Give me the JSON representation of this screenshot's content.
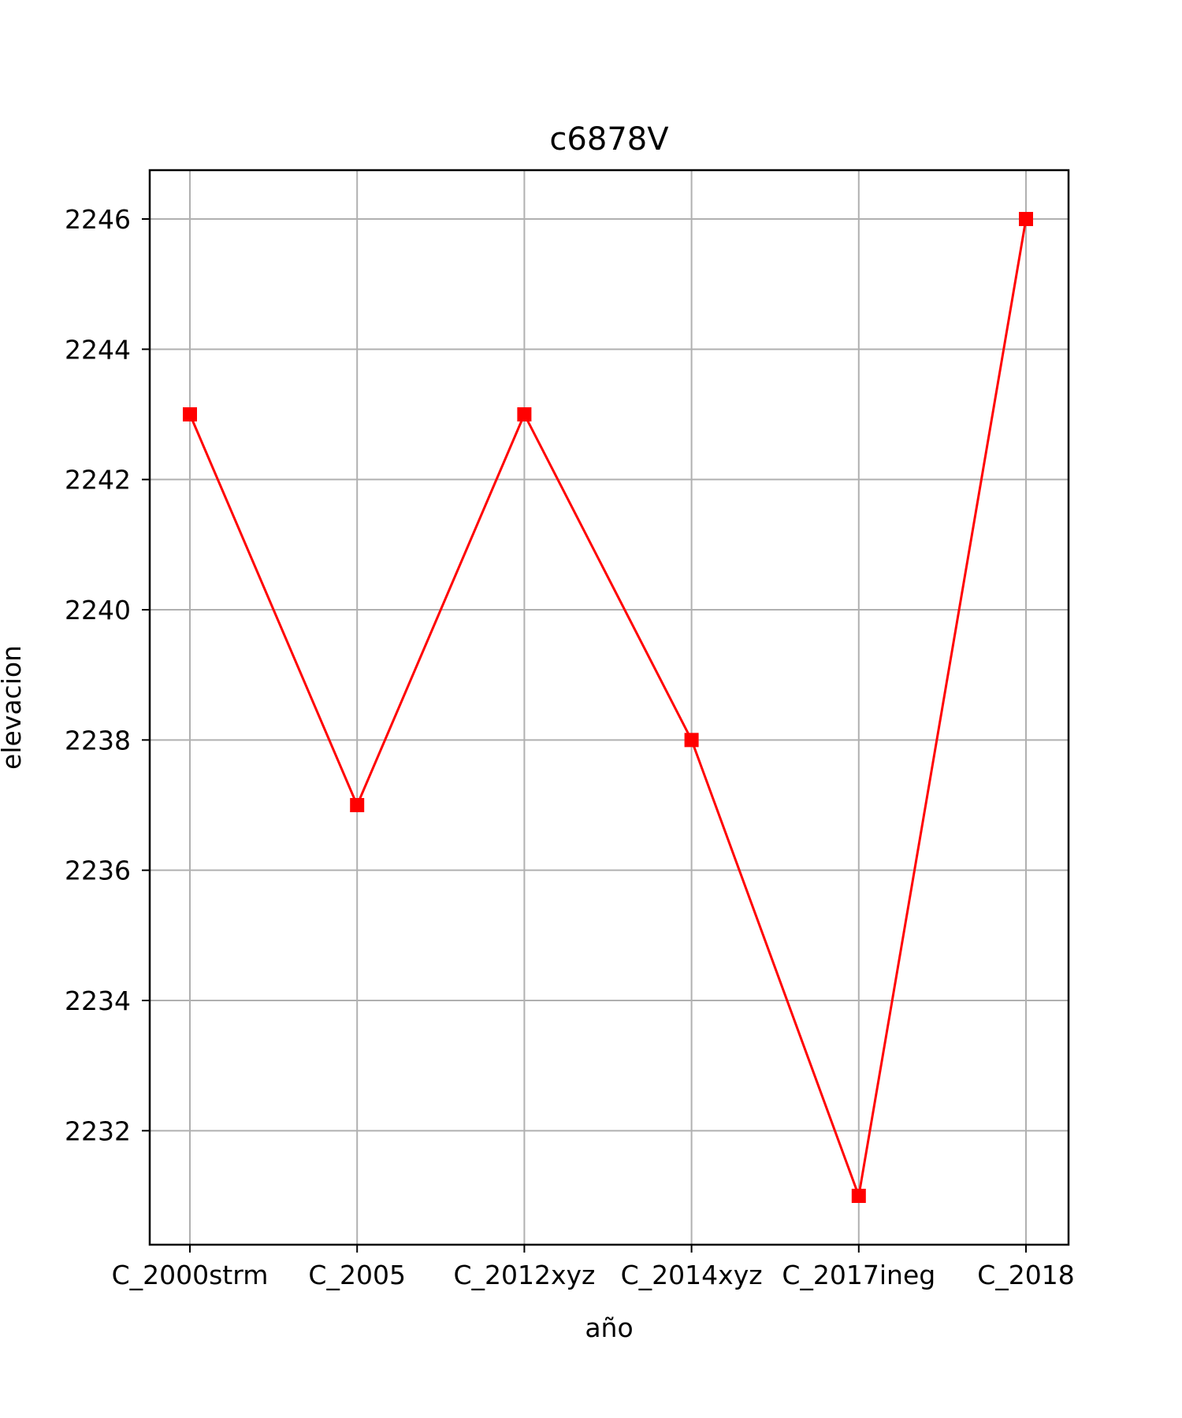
{
  "chart_data": {
    "type": "line",
    "title": "c6878V",
    "xlabel": "año",
    "ylabel": "elevacion",
    "categories": [
      "C_2000strm",
      "C_2005",
      "C_2012xyz",
      "C_2014xyz",
      "C_2017ineg",
      "C_2018"
    ],
    "series": [
      {
        "values": [
          2243,
          2237,
          2243,
          2238,
          2231,
          2246
        ],
        "color": "#ff0000",
        "marker": "square"
      }
    ],
    "ylim": [
      2230.25,
      2246.75
    ],
    "yticks": [
      2232,
      2234,
      2236,
      2238,
      2240,
      2242,
      2244,
      2246
    ],
    "grid": true
  }
}
